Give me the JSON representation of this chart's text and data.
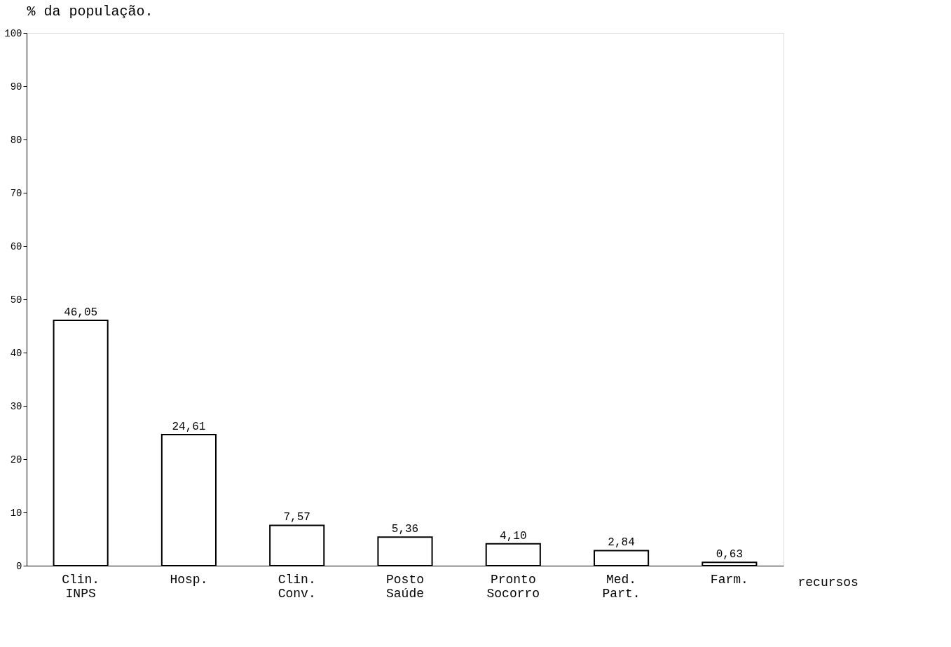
{
  "chart_data": {
    "type": "bar",
    "categories": [
      "Clin.\nINPS",
      "Hosp.",
      "Clin.\nConv.",
      "Posto\nSaúde",
      "Pronto\nSocorro",
      "Med.\nPart.",
      "Farm."
    ],
    "values": [
      46.05,
      24.61,
      7.57,
      5.36,
      4.1,
      2.84,
      0.63
    ],
    "value_labels": [
      "46,05",
      "24,61",
      "7,57",
      "5,36",
      "4,10",
      "2,84",
      "0,63"
    ],
    "color": "#ffffff",
    "ylabel": "% da população.",
    "xlabel": "recursos",
    "ylim": [
      0,
      100
    ],
    "yticks": [
      0,
      10,
      20,
      30,
      40,
      50,
      60,
      70,
      80,
      90,
      100
    ],
    "grid": false
  }
}
